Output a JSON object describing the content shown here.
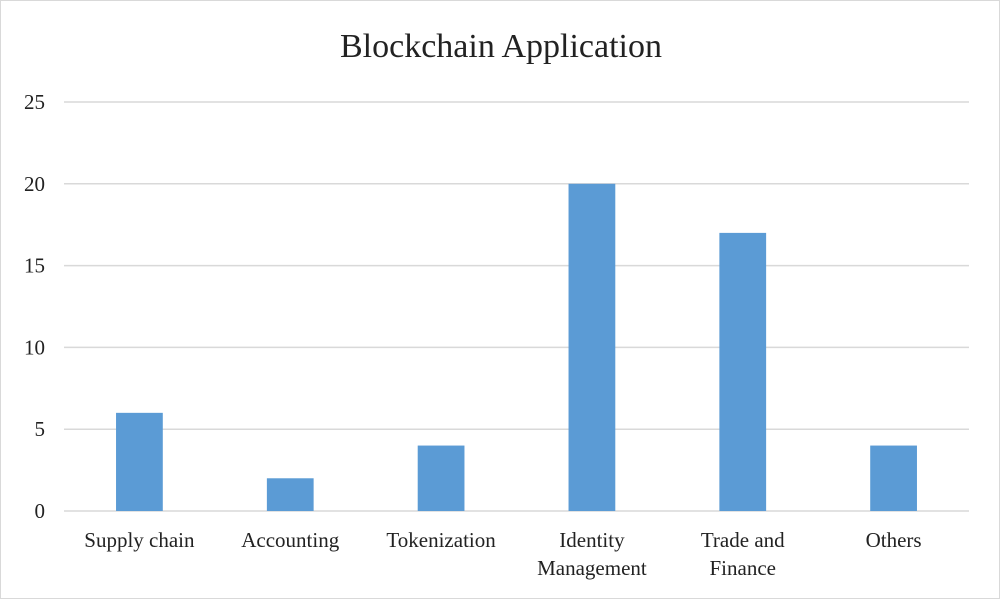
{
  "chart_data": {
    "type": "bar",
    "title": "Blockchain Application",
    "categories": [
      [
        "Supply chain"
      ],
      [
        "Accounting"
      ],
      [
        "Tokenization"
      ],
      [
        "Identity",
        "Management"
      ],
      [
        "Trade and",
        "Finance"
      ],
      [
        "Others"
      ]
    ],
    "values": [
      6,
      2,
      4,
      20,
      17,
      4
    ],
    "ylim": [
      0,
      25
    ],
    "yticks": [
      0,
      5,
      10,
      15,
      20,
      25
    ],
    "grid": true,
    "bar_color": "#5b9bd5",
    "grid_color": "#d9d9d9"
  }
}
